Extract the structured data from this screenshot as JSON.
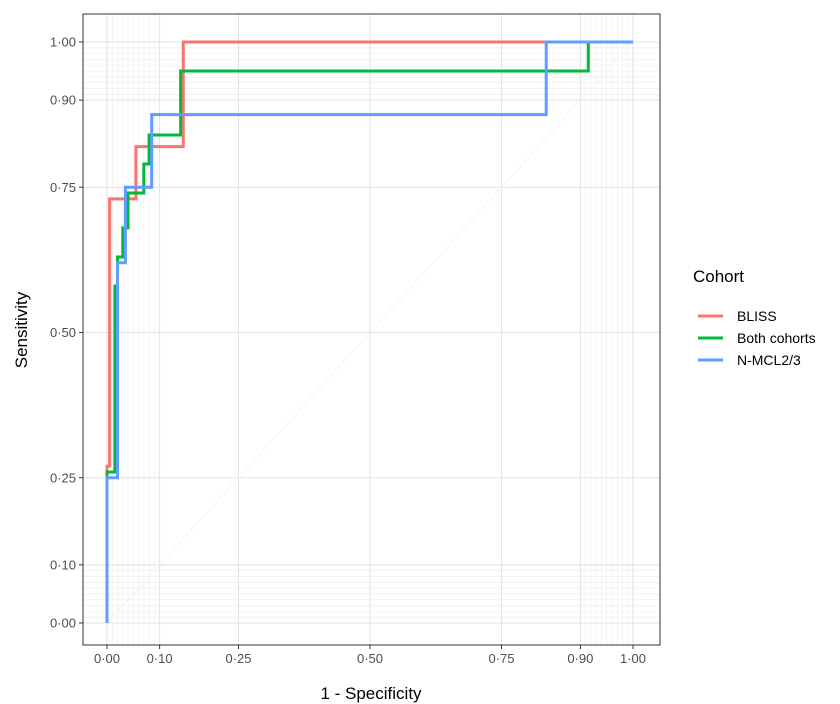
{
  "chart_data": {
    "type": "line",
    "title": "",
    "xlabel": "1 - Specificity",
    "ylabel": "Sensitivity",
    "xlim": [
      0,
      1
    ],
    "ylim": [
      0,
      1
    ],
    "x_ticks": [
      0,
      0.1,
      0.25,
      0.5,
      0.75,
      0.9,
      1
    ],
    "x_tick_labels": [
      "0·00",
      "0·10",
      "0·25",
      "0·50",
      "0·75",
      "0·90",
      "1·00"
    ],
    "y_ticks": [
      0,
      0.1,
      0.25,
      0.5,
      0.75,
      0.9,
      1
    ],
    "y_tick_labels": [
      "0·00",
      "0·10",
      "0·25",
      "0·50",
      "0·75",
      "0·90",
      "1·00"
    ],
    "minor_grid": [
      0.01,
      0.02,
      0.03,
      0.04,
      0.05,
      0.06,
      0.07,
      0.08,
      0.09,
      0.91,
      0.92,
      0.93,
      0.94,
      0.95,
      0.96,
      0.97,
      0.98,
      0.99
    ],
    "grid": true,
    "diagonal_reference": true,
    "legend": {
      "title": "Cohort",
      "placement": "right"
    },
    "series": [
      {
        "name": "BLISS",
        "color": "#F8766D",
        "points": [
          [
            0,
            0
          ],
          [
            0,
            0.27
          ],
          [
            0.005,
            0.27
          ],
          [
            0.005,
            0.73
          ],
          [
            0.055,
            0.73
          ],
          [
            0.055,
            0.82
          ],
          [
            0.145,
            0.82
          ],
          [
            0.145,
            1.0
          ],
          [
            1.0,
            1.0
          ]
        ]
      },
      {
        "name": "Both cohorts",
        "color": "#00BA38",
        "points": [
          [
            0,
            0
          ],
          [
            0,
            0.26
          ],
          [
            0.015,
            0.26
          ],
          [
            0.015,
            0.58
          ],
          [
            0.02,
            0.58
          ],
          [
            0.02,
            0.63
          ],
          [
            0.03,
            0.63
          ],
          [
            0.03,
            0.68
          ],
          [
            0.04,
            0.68
          ],
          [
            0.04,
            0.74
          ],
          [
            0.07,
            0.74
          ],
          [
            0.07,
            0.79
          ],
          [
            0.08,
            0.79
          ],
          [
            0.08,
            0.84
          ],
          [
            0.14,
            0.84
          ],
          [
            0.14,
            0.95
          ],
          [
            0.915,
            0.95
          ],
          [
            0.915,
            1.0
          ],
          [
            1.0,
            1.0
          ]
        ]
      },
      {
        "name": "N-MCL2/3",
        "color": "#619CFF",
        "points": [
          [
            0,
            0
          ],
          [
            0,
            0.25
          ],
          [
            0.02,
            0.25
          ],
          [
            0.02,
            0.62
          ],
          [
            0.035,
            0.62
          ],
          [
            0.035,
            0.75
          ],
          [
            0.085,
            0.75
          ],
          [
            0.085,
            0.875
          ],
          [
            0.835,
            0.875
          ],
          [
            0.835,
            1.0
          ],
          [
            1.0,
            1.0
          ]
        ]
      }
    ]
  }
}
